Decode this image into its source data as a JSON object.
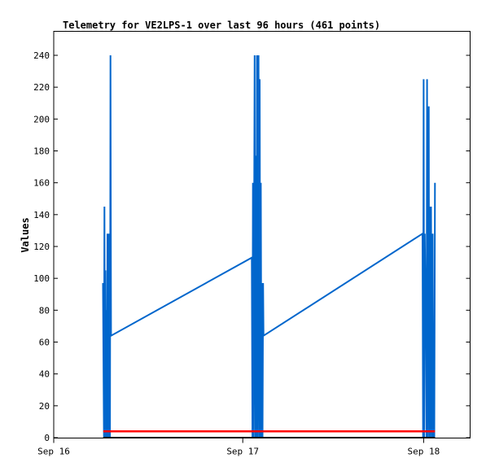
{
  "chart_data": {
    "type": "line",
    "title": "Telemetry for VE2LPS-1 over last 96 hours (461 points)",
    "xlabel": "",
    "ylabel": "Values",
    "x_ticks": [
      "Sep 16",
      "Sep 17",
      "Sep 18"
    ],
    "x_tick_hours": [
      0,
      24,
      48
    ],
    "xlim_hours": [
      0,
      55
    ],
    "ylim": [
      0,
      240
    ],
    "y_ticks": [
      0,
      20,
      40,
      60,
      80,
      100,
      120,
      140,
      160,
      180,
      200,
      220,
      240
    ],
    "grid": false,
    "legend": "none",
    "series": [
      {
        "color": "#0066cc",
        "points": [
          [
            5.45,
            97
          ],
          [
            5.52,
            48
          ],
          [
            5.58,
            0
          ],
          [
            5.65,
            145
          ],
          [
            5.72,
            0
          ],
          [
            5.78,
            105
          ],
          [
            5.85,
            0
          ],
          [
            5.92,
            80
          ],
          [
            5.98,
            0
          ],
          [
            6.05,
            128
          ],
          [
            6.12,
            0
          ],
          [
            6.18,
            128
          ],
          [
            6.25,
            0
          ],
          [
            6.32,
            128
          ],
          [
            6.38,
            0
          ],
          [
            6.45,
            240
          ],
          [
            6.52,
            64
          ],
          [
            25.2,
            113
          ],
          [
            25.28,
            0
          ],
          [
            25.35,
            160
          ],
          [
            25.42,
            0
          ],
          [
            25.5,
            128
          ],
          [
            25.58,
            240
          ],
          [
            25.65,
            0
          ],
          [
            25.72,
            177
          ],
          [
            25.8,
            0
          ],
          [
            25.88,
            240
          ],
          [
            25.95,
            0
          ],
          [
            26.03,
            145
          ],
          [
            26.1,
            240
          ],
          [
            26.18,
            0
          ],
          [
            26.25,
            225
          ],
          [
            26.33,
            0
          ],
          [
            26.4,
            160
          ],
          [
            26.48,
            0
          ],
          [
            26.55,
            97
          ],
          [
            26.62,
            0
          ],
          [
            26.7,
            97
          ],
          [
            26.75,
            64
          ],
          [
            47.85,
            128
          ],
          [
            47.92,
            0
          ],
          [
            48.0,
            225
          ],
          [
            48.08,
            0
          ],
          [
            48.15,
            128
          ],
          [
            48.22,
            97
          ],
          [
            48.3,
            81
          ],
          [
            48.38,
            0
          ],
          [
            48.45,
            225
          ],
          [
            48.52,
            0
          ],
          [
            48.6,
            128
          ],
          [
            48.68,
            208
          ],
          [
            48.75,
            0
          ],
          [
            48.82,
            145
          ],
          [
            48.9,
            0
          ],
          [
            48.98,
            145
          ],
          [
            49.05,
            48
          ],
          [
            49.12,
            0
          ],
          [
            49.2,
            128
          ],
          [
            49.28,
            0
          ],
          [
            49.35,
            48
          ],
          [
            49.42,
            0
          ],
          [
            49.5,
            160
          ]
        ]
      },
      {
        "color": "#ff0000",
        "points": [
          [
            5.5,
            4
          ],
          [
            49.5,
            4
          ]
        ]
      },
      {
        "color": "#000000",
        "points": [
          [
            5.5,
            0
          ],
          [
            49.5,
            0
          ]
        ]
      }
    ]
  }
}
